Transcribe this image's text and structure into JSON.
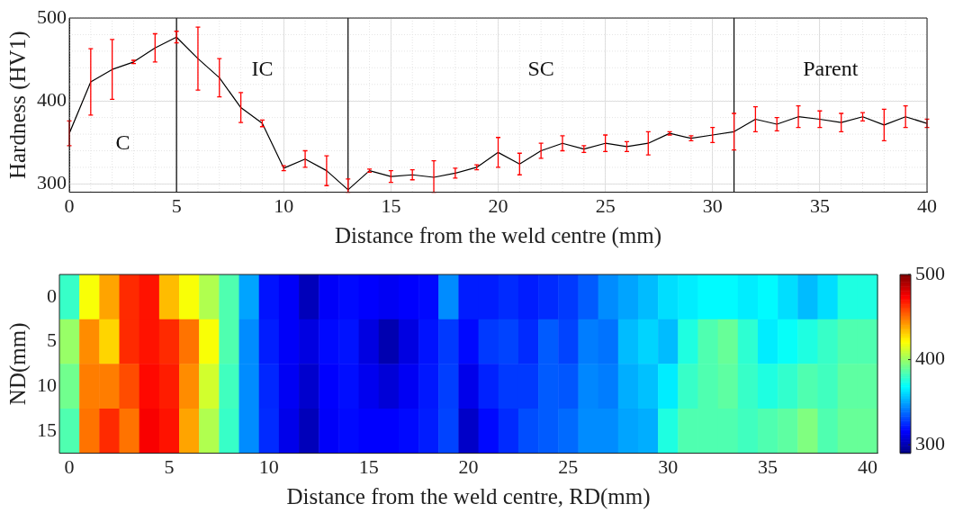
{
  "chart_data": [
    {
      "type": "line",
      "xlabel": "Distance from the weld centre (mm)",
      "ylabel": "Hardness (HV1)",
      "x": [
        0,
        1,
        2,
        3,
        4,
        5,
        6,
        7,
        8,
        9,
        10,
        11,
        12,
        13,
        14,
        15,
        16,
        17,
        18,
        19,
        20,
        21,
        22,
        23,
        24,
        25,
        26,
        27,
        28,
        29,
        30,
        31,
        32,
        33,
        34,
        35,
        36,
        37,
        38,
        39,
        40
      ],
      "series": [
        {
          "color": "#000000",
          "values": [
            361,
            423,
            438,
            447,
            464,
            477,
            451,
            428,
            392,
            373,
            319,
            330,
            316,
            293,
            316,
            309,
            311,
            308,
            313,
            320,
            338,
            324,
            340,
            349,
            342,
            349,
            345,
            349,
            361,
            355,
            359,
            363,
            378,
            372,
            381,
            378,
            374,
            381,
            371,
            381,
            373
          ],
          "errors": [
            15,
            40,
            36,
            2,
            17,
            7,
            38,
            23,
            18,
            4,
            3,
            10,
            18,
            [
              290,
              306
            ],
            2,
            7,
            6,
            [
              290,
              328
            ],
            6,
            3,
            18,
            13,
            9,
            9,
            4,
            10,
            6,
            14,
            2,
            3,
            9,
            22,
            15,
            8,
            13,
            10,
            11,
            5,
            19,
            13,
            5
          ]
        }
      ],
      "xlim": [
        0,
        40
      ],
      "xticks": [
        0,
        5,
        10,
        15,
        20,
        25,
        30,
        35,
        40
      ],
      "ylim": [
        290,
        500
      ],
      "yticks": [
        300,
        400,
        500
      ],
      "grid": true,
      "ref_lines": [
        {
          "axis": "x",
          "value": 5,
          "color": "#000000"
        },
        {
          "axis": "x",
          "value": 13,
          "color": "#000000"
        },
        {
          "axis": "x",
          "value": 31,
          "color": "#000000"
        }
      ],
      "annotations": [
        "C",
        "IC",
        "SC",
        "Parent"
      ]
    },
    {
      "type": "heatmap",
      "xlabel": "Distance from the weld centre, RD(mm)",
      "ylabel": "ND(mm)",
      "categories": [
        "0",
        null,
        null,
        null,
        null,
        "5",
        null,
        null,
        null,
        null,
        "10",
        null,
        null,
        null,
        null,
        "15",
        null,
        null,
        null,
        null,
        "20",
        null,
        null,
        null,
        null,
        "25",
        null,
        null,
        null,
        null,
        "30",
        null,
        null,
        null,
        null,
        "35",
        null,
        null,
        null,
        null,
        "40"
      ],
      "y_categories": [
        "0",
        "5",
        "10",
        "15"
      ],
      "cells": [
        [
          380,
          420,
          440,
          465,
          470,
          435,
          420,
          405,
          385,
          350,
          320,
          315,
          302,
          315,
          318,
          316,
          314,
          316,
          318,
          345,
          322,
          322,
          325,
          322,
          325,
          328,
          335,
          345,
          350,
          355,
          362,
          365,
          368,
          368,
          365,
          368,
          362,
          355,
          362,
          375,
          375
        ],
        [
          400,
          445,
          430,
          465,
          470,
          465,
          450,
          420,
          385,
          345,
          322,
          315,
          310,
          318,
          320,
          310,
          300,
          310,
          320,
          328,
          318,
          328,
          330,
          325,
          335,
          330,
          342,
          340,
          355,
          360,
          355,
          375,
          385,
          390,
          378,
          365,
          370,
          375,
          380,
          385,
          385
        ],
        [
          392,
          448,
          448,
          458,
          472,
          468,
          445,
          412,
          382,
          345,
          324,
          314,
          306,
          316,
          319,
          313,
          308,
          314,
          321,
          329,
          312,
          323,
          328,
          328,
          335,
          334,
          344,
          342,
          352,
          356,
          365,
          380,
          385,
          388,
          380,
          375,
          379,
          385,
          382,
          388,
          388
        ],
        [
          385,
          450,
          465,
          450,
          475,
          470,
          440,
          405,
          380,
          345,
          325,
          312,
          302,
          315,
          318,
          316,
          316,
          318,
          322,
          330,
          305,
          318,
          325,
          332,
          335,
          338,
          345,
          345,
          350,
          352,
          375,
          385,
          385,
          385,
          382,
          385,
          388,
          395,
          385,
          390,
          390
        ]
      ],
      "clim": [
        290,
        500
      ],
      "cticks": [
        300,
        400,
        500
      ]
    }
  ]
}
